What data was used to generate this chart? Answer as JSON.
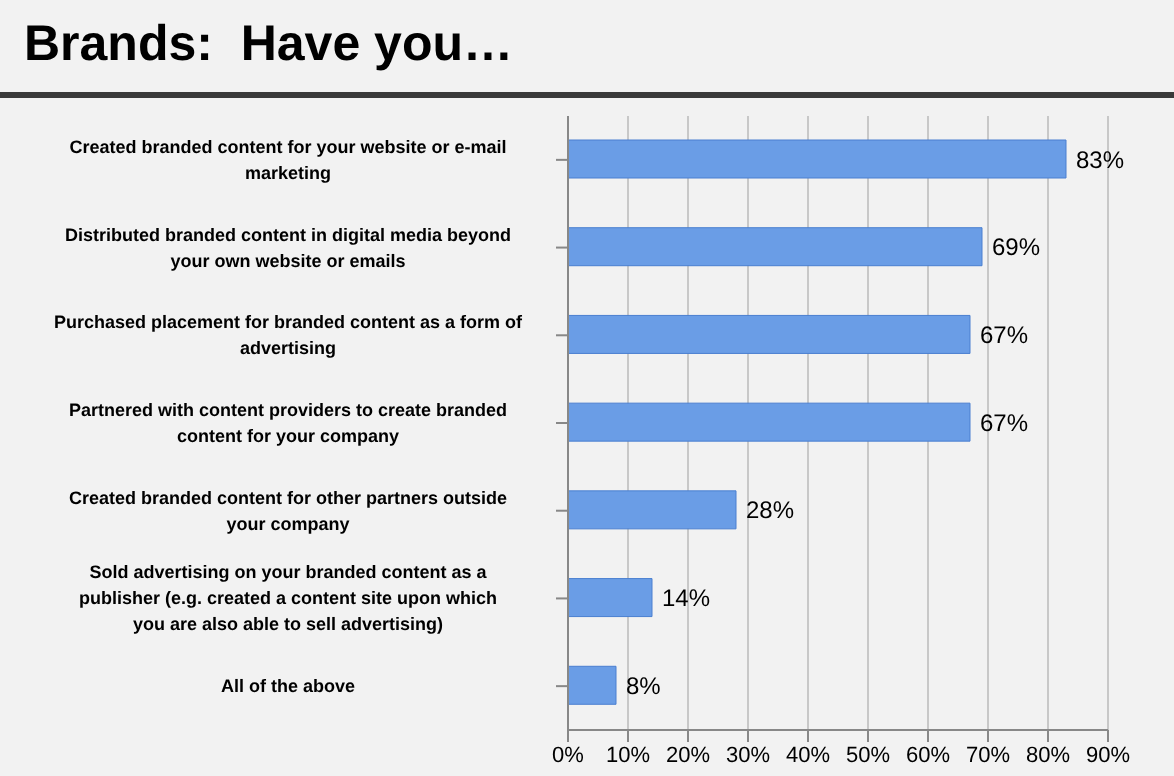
{
  "chart_data": {
    "type": "bar",
    "orientation": "horizontal",
    "title": "Brands:  Have you…",
    "categories": [
      "Created branded content for your website or e-mail marketing",
      "Distributed branded content in digital media beyond your own website or emails",
      "Purchased placement for branded content as a form of advertising",
      "Partnered with content providers to create branded content for your company",
      "Created branded content for other partners outside your company",
      "Sold advertising on your branded content as a publisher (e.g. created a content site upon which you are also able to sell advertising)",
      "All of the above"
    ],
    "values": [
      83,
      69,
      67,
      67,
      28,
      14,
      8
    ],
    "value_labels": [
      "83%",
      "69%",
      "67%",
      "67%",
      "28%",
      "14%",
      "8%"
    ],
    "color": "#6a9de6",
    "xlim": [
      0,
      90
    ],
    "xticks": [
      {
        "value": 0,
        "label": "0%"
      },
      {
        "value": 10,
        "label": "10%"
      },
      {
        "value": 20,
        "label": "20%"
      },
      {
        "value": 30,
        "label": "30%"
      },
      {
        "value": 40,
        "label": "40%"
      },
      {
        "value": 50,
        "label": "50%"
      },
      {
        "value": 60,
        "label": "60%"
      },
      {
        "value": 70,
        "label": "70%"
      },
      {
        "value": 80,
        "label": "80%"
      },
      {
        "value": 90,
        "label": "90%"
      }
    ],
    "grid": "x"
  }
}
